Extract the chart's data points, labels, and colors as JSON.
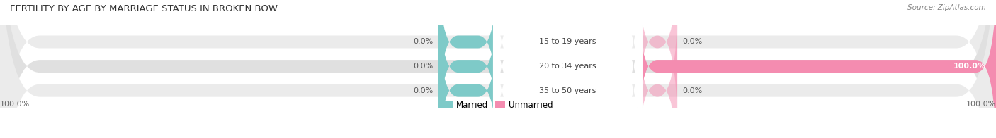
{
  "title": "FERTILITY BY AGE BY MARRIAGE STATUS IN BROKEN BOW",
  "source": "Source: ZipAtlas.com",
  "categories": [
    "15 to 19 years",
    "20 to 34 years",
    "35 to 50 years"
  ],
  "married_values": [
    0.0,
    0.0,
    0.0
  ],
  "unmarried_values": [
    0.0,
    100.0,
    0.0
  ],
  "married_color": "#7ecac8",
  "unmarried_color": "#f48cb0",
  "bar_bg_color": "#ebebeb",
  "bar_bg_color2": "#e0e0e0",
  "figsize": [
    14.06,
    1.96
  ],
  "dpi": 100,
  "left_label": "100.0%",
  "right_label": "100.0%",
  "legend_married": "Married",
  "legend_unmarried": "Unmarried",
  "title_fontsize": 9.5,
  "label_fontsize": 8.0,
  "cat_fontsize": 8.0,
  "source_fontsize": 7.5
}
